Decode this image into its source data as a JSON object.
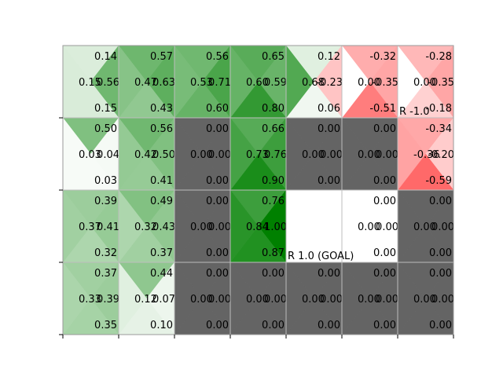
{
  "rows": 4,
  "cols": 7,
  "value_color_scale": {
    "positive": "#008000",
    "negative": "#ff0000",
    "empty": "#ffffff",
    "blocked": "#646464",
    "max_abs": 1.0
  },
  "cells": [
    [
      {
        "type": "state",
        "up": "0.14",
        "right": "0.56",
        "down": "0.15",
        "left": "0.15"
      },
      {
        "type": "state",
        "up": "0.57",
        "right": "0.63",
        "down": "0.43",
        "left": "0.47"
      },
      {
        "type": "state",
        "up": "0.56",
        "right": "0.71",
        "down": "0.60",
        "left": "0.53"
      },
      {
        "type": "state",
        "up": "0.65",
        "right": "0.59",
        "down": "0.80",
        "left": "0.60"
      },
      {
        "type": "state",
        "up": "0.12",
        "right": "-0.23",
        "down": "0.06",
        "left": "0.68"
      },
      {
        "type": "state",
        "up": "-0.32",
        "right": "-0.35",
        "down": "-0.51",
        "left": "0.00"
      },
      {
        "type": "state",
        "up": "-0.28",
        "right": "-0.35",
        "down": "-0.18",
        "left": "0.00"
      }
    ],
    [
      {
        "type": "state",
        "up": "0.50",
        "right": "0.04",
        "down": "0.03",
        "left": "0.03"
      },
      {
        "type": "state",
        "up": "0.56",
        "right": "0.50",
        "down": "0.41",
        "left": "0.42"
      },
      {
        "type": "blocked",
        "up": "0.00",
        "right": "0.00",
        "down": "0.00",
        "left": "0.00"
      },
      {
        "type": "state",
        "up": "0.66",
        "right": "0.76",
        "down": "0.90",
        "left": "0.73"
      },
      {
        "type": "blocked",
        "up": "0.00",
        "right": "0.00",
        "down": "0.00",
        "left": "0.00"
      },
      {
        "type": "blocked",
        "up": "0.00",
        "right": "0.00",
        "down": "0.00",
        "left": "0.00"
      },
      {
        "type": "state",
        "up": "-0.34",
        "right": "-0.20",
        "down": "-0.59",
        "left": "-0.36"
      }
    ],
    [
      {
        "type": "state",
        "up": "0.39",
        "right": "0.41",
        "down": "0.32",
        "left": "0.37"
      },
      {
        "type": "state",
        "up": "0.49",
        "right": "0.43",
        "down": "0.37",
        "left": "0.32"
      },
      {
        "type": "blocked",
        "up": "0.00",
        "right": "0.00",
        "down": "0.00",
        "left": "0.00"
      },
      {
        "type": "state",
        "up": "0.76",
        "right": "1.00",
        "down": "0.87",
        "left": "0.84"
      },
      {
        "type": "goal",
        "up": "",
        "right": "",
        "down": "",
        "left": ""
      },
      {
        "type": "empty",
        "up": "0.00",
        "right": "0.00",
        "down": "0.00",
        "left": "0.00"
      },
      {
        "type": "blocked",
        "up": "0.00",
        "right": "0.00",
        "down": "0.00",
        "left": "0.00"
      }
    ],
    [
      {
        "type": "state",
        "up": "0.37",
        "right": "0.39",
        "down": "0.35",
        "left": "0.33"
      },
      {
        "type": "state",
        "up": "0.44",
        "right": "0.07",
        "down": "0.10",
        "left": "0.12"
      },
      {
        "type": "blocked",
        "up": "0.00",
        "right": "0.00",
        "down": "0.00",
        "left": "0.00"
      },
      {
        "type": "blocked",
        "up": "0.00",
        "right": "0.00",
        "down": "0.00",
        "left": "0.00"
      },
      {
        "type": "blocked",
        "up": "0.00",
        "right": "0.00",
        "down": "0.00",
        "left": "0.00"
      },
      {
        "type": "blocked",
        "up": "0.00",
        "right": "0.00",
        "down": "0.00",
        "left": "0.00"
      },
      {
        "type": "blocked",
        "up": "0.00",
        "right": "0.00",
        "down": "0.00",
        "left": "0.00"
      }
    ]
  ],
  "rewards": [
    {
      "row": 0,
      "col": 6,
      "label": "R -1.0"
    },
    {
      "row": 2,
      "col": 4,
      "label": "R 1.0 (GOAL)"
    }
  ]
}
